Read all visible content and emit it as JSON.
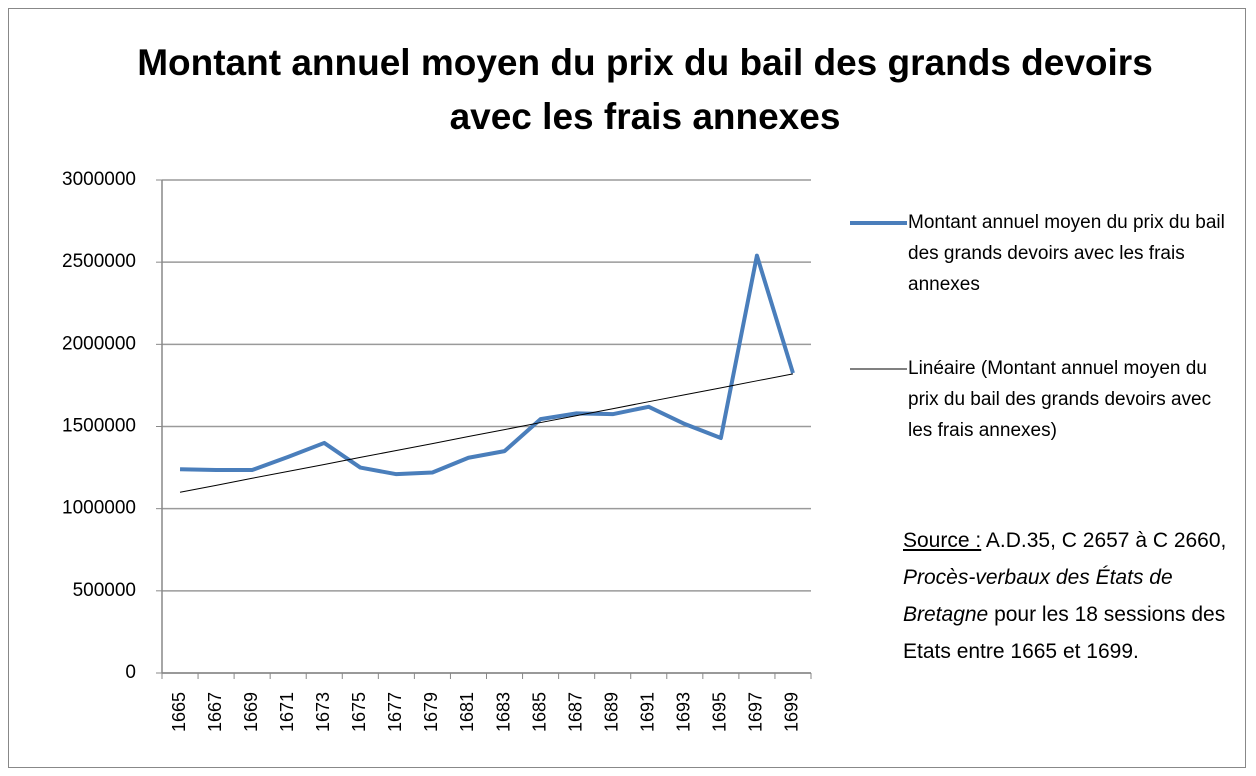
{
  "chart_data": {
    "type": "line",
    "title": "Montant annuel moyen du prix du bail des grands devoirs avec les frais annexes",
    "categories": [
      "1665",
      "1667",
      "1669",
      "1671",
      "1673",
      "1675",
      "1677",
      "1679",
      "1681",
      "1683",
      "1685",
      "1687",
      "1689",
      "1691",
      "1693",
      "1695",
      "1697",
      "1699"
    ],
    "series": [
      {
        "name": "Montant annuel moyen du prix du bail des grands devoirs avec les frais annexes",
        "color": "#4a7ebb",
        "width": 4,
        "values": [
          1240000,
          1235000,
          1235000,
          1315000,
          1400000,
          1250000,
          1210000,
          1220000,
          1310000,
          1350000,
          1545000,
          1580000,
          1575000,
          1620000,
          1515000,
          1430000,
          2540000,
          1825000
        ]
      },
      {
        "name": "Linéaire (Montant annuel moyen du prix du bail des grands devoirs avec les frais annexes)",
        "color": "#000000",
        "width": 1,
        "values": [
          1100000,
          1142000,
          1185000,
          1227000,
          1269000,
          1312000,
          1354000,
          1396000,
          1439000,
          1481000,
          1524000,
          1566000,
          1608000,
          1651000,
          1693000,
          1735000,
          1778000,
          1820000
        ]
      }
    ],
    "ylim": [
      0,
      3000000
    ],
    "yticks": [
      0,
      500000,
      1000000,
      1500000,
      2000000,
      2500000,
      3000000
    ],
    "grid": true,
    "legend": "right",
    "annotation": {
      "label": "Source :",
      "text": " A.D.35, C 2657 à C 2660, ",
      "italic": "Procès-verbaux des États de Bretagne",
      "rest": " pour les 18 sessions des Etats entre 1665 et 1699."
    }
  }
}
